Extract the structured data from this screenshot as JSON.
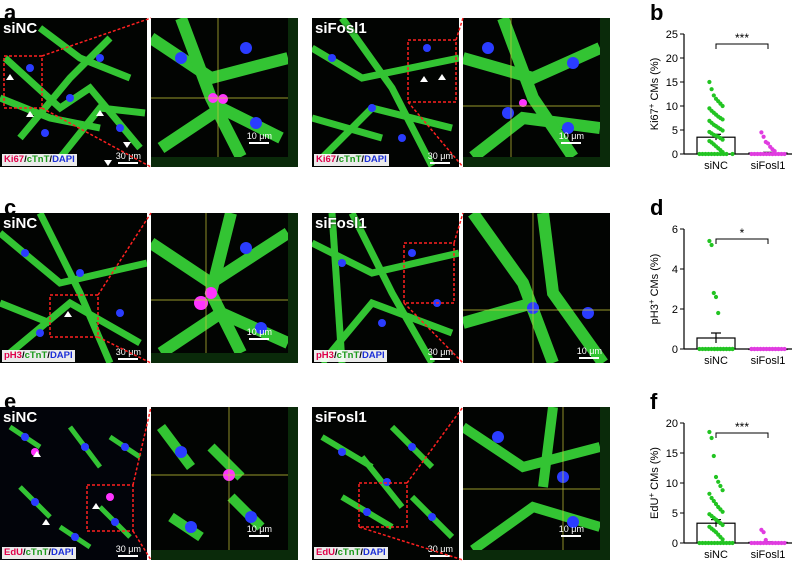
{
  "panels": {
    "a": "a",
    "b": "b",
    "c": "c",
    "d": "d",
    "e": "e",
    "f": "f"
  },
  "micro": {
    "row1": {
      "ctrl_label": "siNC",
      "kd_label": "siFosl1",
      "stain_marker": "Ki67",
      "stain_ctnt": "cTnT",
      "stain_dapi": "DAPI",
      "slash": "/",
      "scale_large": "30 μm",
      "scale_small": "10 μm"
    },
    "row2": {
      "ctrl_label": "siNC",
      "kd_label": "siFosl1",
      "stain_marker": "pH3",
      "stain_ctnt": "cTnT",
      "stain_dapi": "DAPI",
      "slash": "/",
      "scale_large": "30 μm",
      "scale_small": "10 μm"
    },
    "row3": {
      "ctrl_label": "siNC",
      "kd_label": "siFosl1",
      "stain_marker": "EdU",
      "stain_ctnt": "cTnT",
      "stain_dapi": "DAPI",
      "slash": "/",
      "scale_large": "30 μm",
      "scale_small": "10 μm"
    }
  },
  "colors": {
    "siNC": "#22c422",
    "siFosl1": "#e03ce0",
    "cTnT": "#1a9a1a",
    "marker": "#e0004a",
    "dapi": "#1c2fd8"
  },
  "chart_data": [
    {
      "id": "b",
      "type": "bar",
      "ylabel_main": "Ki67",
      "ylabel_sup": "+",
      "ylabel_rest": " CMs (%)",
      "categories": [
        "siNC",
        "siFosl1"
      ],
      "values": [
        3.5,
        0.2
      ],
      "errors": [
        0.6,
        0.15
      ],
      "ylim": [
        0,
        25
      ],
      "yticks": [
        0,
        5,
        10,
        15,
        20,
        25
      ],
      "significance": "***",
      "points": {
        "siNC": [
          15,
          13.5,
          12.2,
          11.5,
          11,
          10.5,
          10,
          9.5,
          9,
          8.6,
          8.2,
          7.8,
          7.5,
          7.2,
          6.9,
          6.5,
          6.1,
          5.8,
          5.5,
          5.2,
          4.9,
          4.6,
          4.3,
          4.0,
          3.8,
          3.6,
          3.3,
          3.0,
          2.7,
          2.4,
          2.0,
          1.6,
          1.2,
          0.8,
          0.4,
          0,
          0,
          0,
          0,
          0,
          0,
          0,
          0,
          0,
          0,
          0
        ],
        "siFosl1": [
          4.5,
          3.6,
          2.5,
          2.2,
          1.5,
          1.0,
          0.6,
          0,
          0,
          0,
          0,
          0,
          0,
          0,
          0,
          0,
          0,
          0,
          0,
          0
        ]
      }
    },
    {
      "id": "d",
      "type": "bar",
      "ylabel_main": "pH3",
      "ylabel_sup": "+",
      "ylabel_rest": " CMs (%)",
      "categories": [
        "siNC",
        "siFosl1"
      ],
      "values": [
        0.55,
        0.0
      ],
      "errors": [
        0.25,
        0.0
      ],
      "ylim": [
        0,
        6
      ],
      "yticks": [
        0,
        2,
        4,
        6
      ],
      "significance": "*",
      "points": {
        "siNC": [
          5.4,
          5.2,
          2.8,
          2.6,
          1.8,
          0,
          0,
          0,
          0,
          0,
          0,
          0,
          0,
          0,
          0,
          0,
          0,
          0,
          0,
          0,
          0,
          0,
          0,
          0
        ],
        "siFosl1": [
          0,
          0,
          0,
          0,
          0,
          0,
          0,
          0,
          0,
          0,
          0,
          0,
          0,
          0,
          0,
          0,
          0,
          0,
          0,
          0,
          0,
          0
        ]
      }
    },
    {
      "id": "f",
      "type": "bar",
      "ylabel_main": "EdU",
      "ylabel_sup": "+",
      "ylabel_rest": " CMs (%)",
      "categories": [
        "siNC",
        "siFosl1"
      ],
      "values": [
        3.3,
        0.1
      ],
      "errors": [
        0.6,
        0.1
      ],
      "ylim": [
        0,
        20
      ],
      "yticks": [
        0,
        5,
        10,
        15,
        20
      ],
      "significance": "***",
      "points": {
        "siNC": [
          18.5,
          17.5,
          14.5,
          11,
          10.2,
          9.5,
          8.8,
          8.2,
          7.5,
          7.0,
          6.5,
          6.0,
          5.6,
          5.2,
          4.8,
          4.5,
          4.2,
          3.9,
          3.6,
          3.3,
          3.0,
          2.7,
          2.4,
          2.1,
          1.8,
          1.4,
          1.0,
          0.6,
          0,
          0,
          0,
          0,
          0,
          0,
          0,
          0,
          0,
          0,
          0,
          0
        ],
        "siFosl1": [
          2.2,
          1.8,
          0.5,
          0,
          0,
          0,
          0,
          0,
          0,
          0,
          0,
          0,
          0,
          0,
          0,
          0
        ]
      }
    }
  ]
}
